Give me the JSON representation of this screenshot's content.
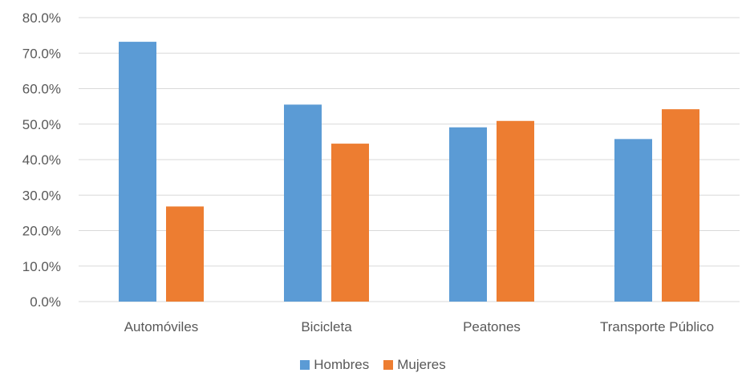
{
  "chart_data": {
    "type": "bar",
    "categories": [
      "Automóviles",
      "Bicicleta",
      "Peatones",
      "Transporte Público"
    ],
    "series": [
      {
        "name": "Hombres",
        "color": "#5B9BD5",
        "values": [
          73.2,
          55.5,
          49.1,
          45.8
        ]
      },
      {
        "name": "Mujeres",
        "color": "#ED7D31",
        "values": [
          26.8,
          44.5,
          50.9,
          54.2
        ]
      }
    ],
    "yticks": [
      "0.0%",
      "10.0%",
      "20.0%",
      "30.0%",
      "40.0%",
      "50.0%",
      "60.0%",
      "70.0%",
      "80.0%"
    ],
    "ylim": [
      0,
      80
    ],
    "grid": true,
    "legend_position": "bottom"
  },
  "legend": {
    "items": [
      {
        "label": "Hombres",
        "color": "#5B9BD5"
      },
      {
        "label": "Mujeres",
        "color": "#ED7D31"
      }
    ]
  }
}
